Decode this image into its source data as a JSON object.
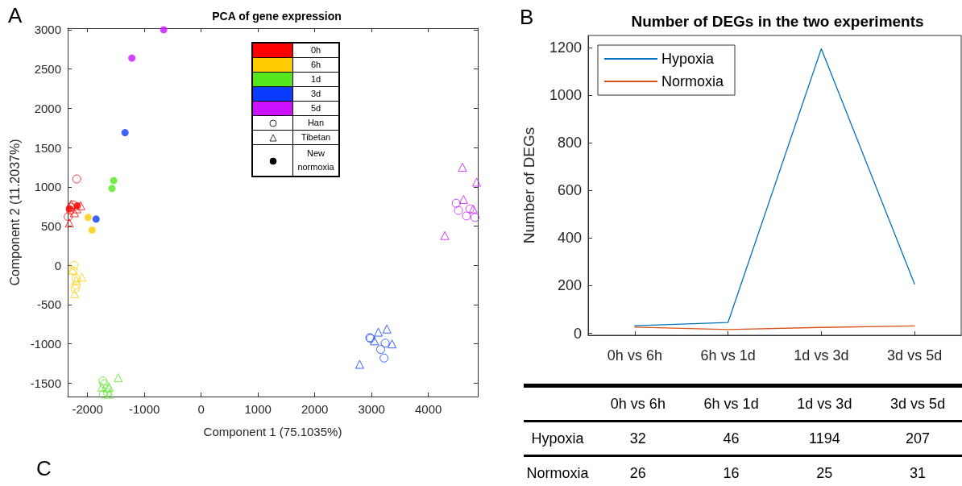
{
  "chart_data": [
    {
      "type": "scatter",
      "title": "PCA of gene expression",
      "xlabel": "Component 1 (75.1035%)",
      "ylabel": "Component 2 (11.2037%)",
      "xlim": [
        -2350,
        4870
      ],
      "xticks": [
        -2000,
        -1000,
        0,
        1000,
        2000,
        3000,
        4000
      ],
      "ylim": [
        -1670,
        3020
      ],
      "yticks": [
        -1500,
        -1000,
        -500,
        0,
        500,
        1000,
        1500,
        2000,
        2500,
        3000
      ],
      "grid": false,
      "annotations": [
        "A",
        "0h",
        "6h",
        "1d",
        "3d",
        "5d",
        "Han",
        "Tibetan",
        "New normoxia",
        "C"
      ],
      "series": [
        {
          "marker": "circle",
          "x": [
            -2190,
            -2290,
            -2340,
            -2300,
            -2250,
            -2240,
            -2250,
            -2200,
            -2200,
            -2220,
            -1730,
            -1710,
            -1660,
            -1720,
            -1650,
            2970,
            2980,
            3240,
            3160,
            3220,
            4490,
            4530,
            4730,
            4670,
            4820
          ],
          "values": [
            1100,
            740,
            620,
            700,
            770,
            0,
            -70,
            -170,
            -250,
            -300,
            -1470,
            -1510,
            -1570,
            -1640,
            -1620,
            -920,
            -930,
            -990,
            -1070,
            -1180,
            790,
            700,
            720,
            630,
            610
          ],
          "colors": [
            "#ff0000",
            "#ff0000",
            "#ff0000",
            "#ff0000",
            "#ff0000",
            "#ffcc00",
            "#ffcc00",
            "#ffcc00",
            "#ffcc00",
            "#ffcc00",
            "#55e61e",
            "#55e61e",
            "#55e61e",
            "#55e61e",
            "#55e61e",
            "#0a3cff",
            "#0a3cff",
            "#0a3cff",
            "#0a3cff",
            "#0a3cff",
            "#cc11ff",
            "#cc11ff",
            "#cc11ff",
            "#cc11ff",
            "#cc11ff"
          ]
        },
        {
          "marker": "triangle",
          "x": [
            -2290,
            -2120,
            -2230,
            -2320,
            -2190,
            -2100,
            -2200,
            -2230,
            -2260,
            -1460,
            -1750,
            -1620,
            -1620,
            3270,
            3120,
            3050,
            3360,
            2790,
            4600,
            4850,
            4620,
            4790,
            4290
          ],
          "values": [
            780,
            760,
            670,
            540,
            720,
            -150,
            -190,
            -360,
            -60,
            -1430,
            -1550,
            -1550,
            -1640,
            -810,
            -850,
            -960,
            -1000,
            -1260,
            1250,
            1060,
            840,
            720,
            380
          ],
          "colors": [
            "#ff0000",
            "#ff0000",
            "#ff0000",
            "#ff0000",
            "#ff0000",
            "#ffcc00",
            "#ffcc00",
            "#ffcc00",
            "#ffcc00",
            "#55e61e",
            "#55e61e",
            "#55e61e",
            "#55e61e",
            "#0a3cff",
            "#0a3cff",
            "#0a3cff",
            "#0a3cff",
            "#0a3cff",
            "#cc11ff",
            "#cc11ff",
            "#cc11ff",
            "#cc11ff",
            "#cc11ff"
          ]
        },
        {
          "marker": "circle",
          "x": [
            -2180,
            -2320,
            -1990,
            -1920,
            -1540,
            -1570,
            -1850,
            -1340,
            -1220,
            -660
          ],
          "values": [
            760,
            720,
            610,
            450,
            1080,
            980,
            590,
            1690,
            2640,
            3000
          ],
          "colors": [
            "#ff0000",
            "#ff0000",
            "#ffcc00",
            "#ffcc00",
            "#55e61e",
            "#55e61e",
            "#0a3cff",
            "#0a3cff",
            "#cc11ff",
            "#cc11ff"
          ]
        }
      ]
    },
    {
      "type": "line",
      "title": "Number of DEGs in the two experiments",
      "ylabel": "Number of DEGs",
      "categories": [
        "0h vs 6h",
        "6h vs 1d",
        "1d vs 3d",
        "3d vs 5d"
      ],
      "ylim": [
        -8,
        1250
      ],
      "yticks": [
        0,
        200,
        400,
        600,
        800,
        1000,
        1200
      ],
      "grid": false,
      "legend": "top left",
      "marker": "none",
      "line_style": "solid",
      "data_labels": true,
      "annotations": [
        "B"
      ],
      "series": [
        {
          "name": "Hypoxia",
          "color": "#0072bd",
          "values": [
            32,
            46,
            1194,
            207
          ]
        },
        {
          "name": "Normoxia",
          "color": "#d95319",
          "values": [
            26,
            16,
            25,
            31
          ]
        }
      ]
    }
  ]
}
